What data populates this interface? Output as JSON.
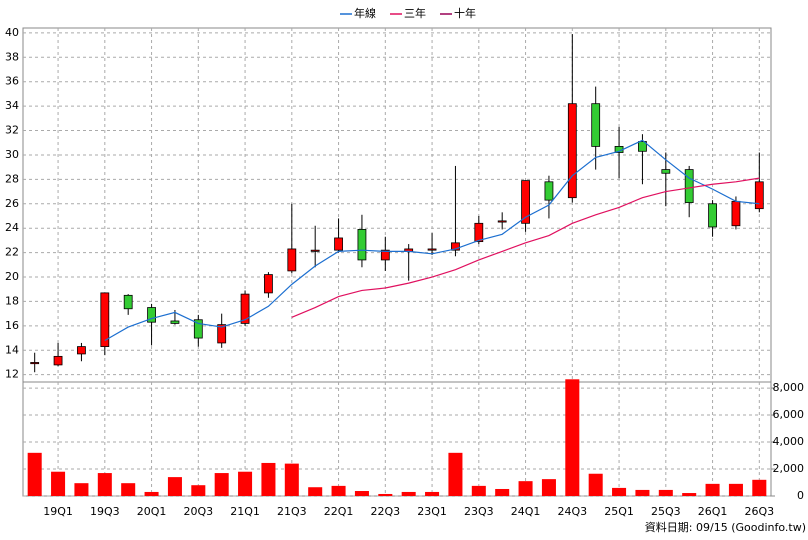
{
  "chart_data": {
    "type": "candlestick",
    "categories": [
      null,
      "19Q1",
      null,
      "19Q3",
      null,
      "20Q1",
      null,
      "20Q3",
      null,
      "21Q1",
      null,
      "21Q3",
      null,
      "22Q1",
      null,
      "22Q3",
      null,
      "23Q1",
      null,
      "23Q3",
      null,
      "24Q1",
      null,
      "24Q3",
      null,
      "25Q1",
      null,
      "25Q3",
      null,
      "26Q1",
      null,
      "26Q3"
    ],
    "open": [
      12.9,
      12.8,
      13.7,
      14.3,
      18.5,
      17.5,
      16.4,
      16.5,
      14.6,
      16.2,
      18.7,
      20.5,
      22.1,
      22.2,
      23.9,
      21.4,
      22.1,
      22.2,
      22.2,
      22.9,
      24.5,
      24.4,
      27.8,
      26.5,
      34.2,
      30.7,
      31.1,
      28.8,
      28.8,
      26.0,
      24.2,
      25.6
    ],
    "high": [
      13.8,
      14.6,
      14.6,
      18.7,
      18.6,
      17.8,
      17.3,
      16.9,
      17.0,
      18.9,
      20.4,
      26.0,
      24.2,
      24.8,
      25.1,
      23.3,
      22.7,
      23.6,
      29.1,
      25.0,
      25.3,
      27.9,
      28.3,
      39.9,
      35.6,
      32.3,
      31.7,
      30.2,
      29.1,
      26.3,
      26.6,
      30.2
    ],
    "low": [
      12.2,
      12.7,
      13.1,
      13.6,
      16.9,
      14.4,
      16.1,
      14.3,
      14.2,
      16.0,
      18.3,
      20.3,
      20.8,
      22.0,
      20.8,
      20.5,
      19.7,
      21.8,
      21.7,
      22.7,
      23.9,
      23.7,
      24.8,
      26.1,
      28.8,
      28.1,
      27.6,
      25.8,
      24.9,
      23.3,
      23.9,
      25.3
    ],
    "close": [
      13.0,
      13.5,
      14.3,
      18.7,
      17.4,
      16.3,
      16.2,
      15.0,
      16.1,
      18.6,
      20.2,
      22.3,
      22.2,
      23.2,
      21.4,
      22.2,
      22.3,
      22.3,
      22.8,
      24.4,
      24.6,
      27.9,
      26.3,
      34.2,
      30.7,
      30.2,
      30.3,
      28.5,
      26.1,
      24.1,
      26.2,
      27.8
    ],
    "up_color": "#ff0000",
    "down_color": "#33cc33",
    "volume": {
      "color": "#ff0000",
      "values": [
        3200,
        1800,
        950,
        1700,
        950,
        300,
        1400,
        800,
        1700,
        1800,
        2450,
        2400,
        650,
        750,
        370,
        150,
        300,
        300,
        3200,
        750,
        520,
        1100,
        1250,
        8650,
        1650,
        600,
        450,
        450,
        220,
        900,
        900,
        1200
      ]
    },
    "series": [
      {
        "name": "年線",
        "color": "#1c6fd0",
        "values": [
          null,
          null,
          null,
          14.8,
          15.9,
          16.6,
          17.1,
          16.2,
          15.9,
          16.5,
          17.6,
          19.4,
          20.9,
          22.1,
          22.2,
          22.1,
          22.1,
          21.9,
          22.3,
          23.0,
          23.5,
          24.9,
          25.9,
          28.3,
          29.8,
          30.3,
          31.2,
          29.6,
          28.1,
          27.2,
          26.2,
          26.0
        ]
      },
      {
        "name": "三年",
        "color": "#e0105f",
        "values": [
          null,
          null,
          null,
          null,
          null,
          null,
          null,
          null,
          null,
          null,
          null,
          16.7,
          17.5,
          18.4,
          18.9,
          19.1,
          19.5,
          20.0,
          20.6,
          21.4,
          22.1,
          22.8,
          23.4,
          24.4,
          25.1,
          25.7,
          26.5,
          27.0,
          27.3,
          27.6,
          27.8,
          28.1
        ]
      },
      {
        "name": "十年",
        "color": "#990055",
        "values": [
          null,
          null,
          null,
          null,
          null,
          null,
          null,
          null,
          null,
          null,
          null,
          null,
          null,
          null,
          null,
          null,
          null,
          null,
          null,
          null,
          null,
          null,
          null,
          null,
          null,
          null,
          null,
          null,
          null,
          null,
          null,
          null
        ]
      }
    ],
    "ylim": [
      11.4,
      40.4
    ],
    "yticks": [
      12,
      14,
      16,
      18,
      20,
      22,
      24,
      26,
      28,
      30,
      32,
      34,
      36,
      38,
      40
    ],
    "y2lim": [
      0,
      8450
    ],
    "y2ticks": [
      0,
      {
        "value": 2000,
        "label": "2,000"
      },
      {
        "value": 4000,
        "label": "4,000"
      },
      {
        "value": 6000,
        "label": "6,000"
      },
      {
        "value": 8000,
        "label": "8,000"
      }
    ],
    "grid": true,
    "legend": "top",
    "footnote": "資料日期: 09/15 (Goodinfo.tw)"
  }
}
